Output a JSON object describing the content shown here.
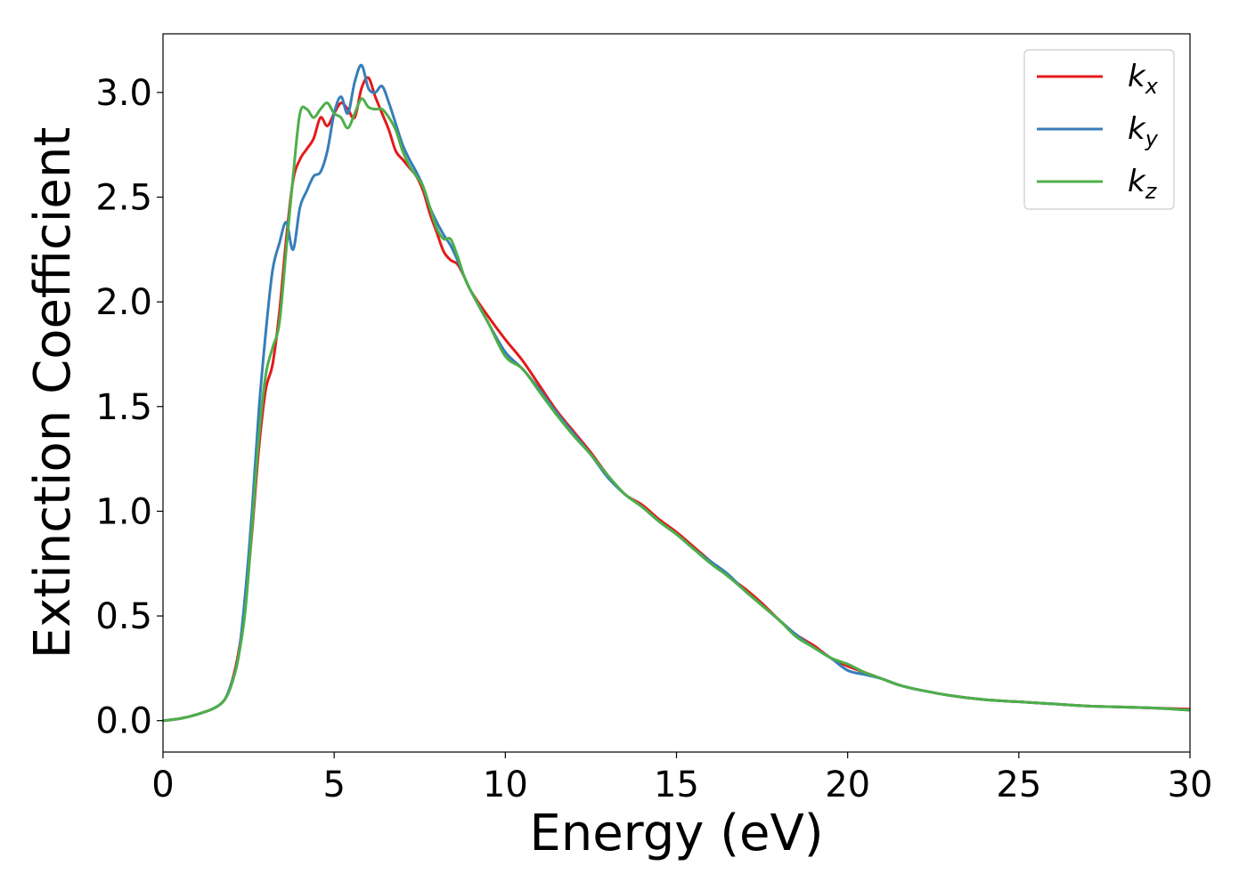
{
  "chart_data": {
    "type": "line",
    "xlabel": "Energy (eV)",
    "ylabel": "Extinction Coefficient",
    "xlim": [
      0,
      30
    ],
    "ylim": [
      -0.15,
      3.28
    ],
    "xticks": [
      0,
      5,
      10,
      15,
      20,
      25,
      30
    ],
    "xtick_labels": [
      "0",
      "5",
      "10",
      "15",
      "20",
      "25",
      "30"
    ],
    "yticks": [
      0.0,
      0.5,
      1.0,
      1.5,
      2.0,
      2.5,
      3.0
    ],
    "ytick_labels": [
      "0.0",
      "0.5",
      "1.0",
      "1.5",
      "2.0",
      "2.5",
      "3.0"
    ],
    "grid": false,
    "legend_position": "top-right",
    "series": [
      {
        "name": "kx",
        "base": "k",
        "sub": "x",
        "color": "#e41a1c",
        "x": [
          0,
          0.5,
          1,
          1.5,
          1.8,
          2.0,
          2.2,
          2.4,
          2.6,
          2.8,
          3.0,
          3.2,
          3.4,
          3.6,
          3.8,
          4.0,
          4.2,
          4.4,
          4.6,
          4.8,
          5.0,
          5.2,
          5.4,
          5.6,
          5.8,
          6.0,
          6.2,
          6.4,
          6.6,
          6.8,
          7.0,
          7.2,
          7.4,
          7.6,
          7.8,
          8.0,
          8.2,
          8.4,
          8.6,
          8.8,
          9.0,
          9.5,
          10,
          10.5,
          11,
          11.5,
          12,
          12.5,
          13,
          13.5,
          14,
          14.5,
          15,
          15.5,
          16,
          16.5,
          17,
          17.5,
          18,
          18.5,
          19,
          19.5,
          20,
          20.5,
          21,
          21.5,
          22,
          23,
          24,
          25,
          26,
          27,
          28,
          29,
          30
        ],
        "y": [
          0.0,
          0.01,
          0.03,
          0.06,
          0.1,
          0.18,
          0.32,
          0.55,
          0.9,
          1.3,
          1.58,
          1.7,
          1.95,
          2.3,
          2.58,
          2.68,
          2.73,
          2.78,
          2.88,
          2.84,
          2.9,
          2.95,
          2.92,
          2.88,
          3.02,
          3.07,
          2.98,
          2.9,
          2.82,
          2.72,
          2.68,
          2.64,
          2.6,
          2.53,
          2.42,
          2.33,
          2.24,
          2.2,
          2.18,
          2.12,
          2.05,
          1.93,
          1.82,
          1.72,
          1.6,
          1.48,
          1.38,
          1.28,
          1.17,
          1.08,
          1.03,
          0.96,
          0.9,
          0.83,
          0.76,
          0.69,
          0.63,
          0.56,
          0.48,
          0.41,
          0.36,
          0.3,
          0.26,
          0.23,
          0.2,
          0.17,
          0.15,
          0.12,
          0.1,
          0.09,
          0.08,
          0.07,
          0.065,
          0.06,
          0.055
        ]
      },
      {
        "name": "ky",
        "base": "k",
        "sub": "y",
        "color": "#377eb8",
        "x": [
          0,
          0.5,
          1,
          1.5,
          1.8,
          2.0,
          2.2,
          2.4,
          2.6,
          2.8,
          3.0,
          3.2,
          3.4,
          3.6,
          3.8,
          4.0,
          4.2,
          4.4,
          4.6,
          4.8,
          5.0,
          5.2,
          5.4,
          5.6,
          5.8,
          6.0,
          6.2,
          6.4,
          6.6,
          6.8,
          7.0,
          7.2,
          7.4,
          7.6,
          7.8,
          8.0,
          8.2,
          8.4,
          8.6,
          8.8,
          9.0,
          9.5,
          10,
          10.5,
          11,
          11.5,
          12,
          12.5,
          13,
          13.5,
          14,
          14.5,
          15,
          15.5,
          16,
          16.5,
          17,
          17.5,
          18,
          18.5,
          19,
          19.5,
          20,
          20.5,
          21,
          21.5,
          22,
          23,
          24,
          25,
          26,
          27,
          28,
          29,
          30
        ],
        "y": [
          0.0,
          0.01,
          0.03,
          0.06,
          0.1,
          0.18,
          0.3,
          0.6,
          1.0,
          1.48,
          1.85,
          2.15,
          2.28,
          2.38,
          2.25,
          2.45,
          2.53,
          2.6,
          2.62,
          2.72,
          2.9,
          2.98,
          2.9,
          3.05,
          3.13,
          3.02,
          3.0,
          3.03,
          2.95,
          2.85,
          2.75,
          2.68,
          2.62,
          2.55,
          2.45,
          2.38,
          2.32,
          2.27,
          2.2,
          2.12,
          2.05,
          1.9,
          1.76,
          1.68,
          1.58,
          1.47,
          1.37,
          1.27,
          1.16,
          1.08,
          1.02,
          0.95,
          0.89,
          0.82,
          0.76,
          0.7,
          0.62,
          0.55,
          0.48,
          0.41,
          0.35,
          0.3,
          0.24,
          0.22,
          0.2,
          0.17,
          0.15,
          0.12,
          0.1,
          0.09,
          0.08,
          0.07,
          0.065,
          0.06,
          0.05
        ]
      },
      {
        "name": "kz",
        "base": "k",
        "sub": "z",
        "color": "#4daf4a",
        "x": [
          0,
          0.5,
          1,
          1.5,
          1.8,
          2.0,
          2.2,
          2.4,
          2.6,
          2.8,
          3.0,
          3.2,
          3.4,
          3.6,
          3.8,
          4.0,
          4.2,
          4.4,
          4.6,
          4.8,
          5.0,
          5.2,
          5.4,
          5.6,
          5.8,
          6.0,
          6.2,
          6.4,
          6.6,
          6.8,
          7.0,
          7.2,
          7.4,
          7.6,
          7.8,
          8.0,
          8.2,
          8.4,
          8.6,
          8.8,
          9.0,
          9.5,
          10,
          10.5,
          11,
          11.5,
          12,
          12.5,
          13,
          13.5,
          14,
          14.5,
          15,
          15.5,
          16,
          16.5,
          17,
          17.5,
          18,
          18.5,
          19,
          19.5,
          20,
          20.5,
          21,
          21.5,
          22,
          23,
          24,
          25,
          26,
          27,
          28,
          29,
          30
        ],
        "y": [
          0.0,
          0.01,
          0.03,
          0.06,
          0.1,
          0.17,
          0.3,
          0.52,
          0.92,
          1.35,
          1.65,
          1.78,
          1.9,
          2.25,
          2.6,
          2.9,
          2.92,
          2.88,
          2.92,
          2.95,
          2.9,
          2.88,
          2.83,
          2.9,
          2.97,
          2.93,
          2.92,
          2.92,
          2.88,
          2.82,
          2.72,
          2.65,
          2.6,
          2.55,
          2.45,
          2.35,
          2.3,
          2.3,
          2.22,
          2.12,
          2.05,
          1.9,
          1.74,
          1.68,
          1.57,
          1.46,
          1.36,
          1.27,
          1.17,
          1.08,
          1.02,
          0.95,
          0.89,
          0.82,
          0.75,
          0.69,
          0.62,
          0.55,
          0.48,
          0.4,
          0.35,
          0.3,
          0.27,
          0.23,
          0.2,
          0.17,
          0.15,
          0.12,
          0.1,
          0.09,
          0.08,
          0.07,
          0.065,
          0.06,
          0.05
        ]
      }
    ]
  }
}
